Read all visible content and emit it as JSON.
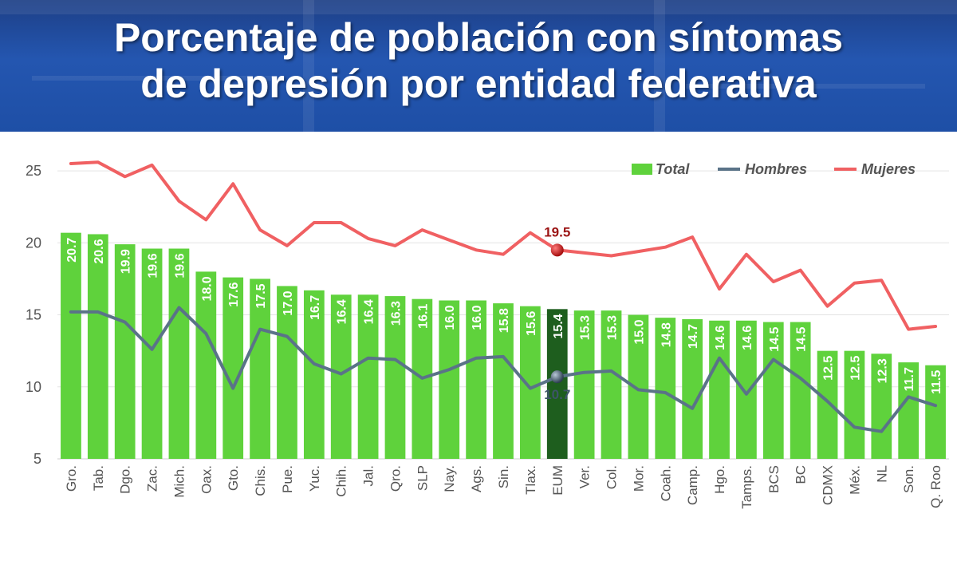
{
  "title_line1": "Porcentaje de población con síntomas",
  "title_line2": "de depresión por entidad federativa",
  "chart_data": {
    "type": "bar",
    "categories": [
      "Gro.",
      "Tab.",
      "Dgo.",
      "Zac.",
      "Mich.",
      "Oax.",
      "Gto.",
      "Chis.",
      "Pue.",
      "Yuc.",
      "Chih.",
      "Jal.",
      "Qro.",
      "SLP",
      "Nay.",
      "Ags.",
      "Sin.",
      "Tlax.",
      "EUM",
      "Ver.",
      "Col.",
      "Mor.",
      "Coah.",
      "Camp.",
      "Hgo.",
      "Tamps.",
      "BCS",
      "BC",
      "CDMX",
      "Méx.",
      "NL",
      "Son.",
      "Q. Roo"
    ],
    "series": [
      {
        "name": "Total",
        "type": "bar",
        "color": "#5fd23c",
        "highlight_color": "#1e5e1e",
        "values": [
          20.7,
          20.6,
          19.9,
          19.6,
          19.6,
          18.0,
          17.6,
          17.5,
          17.0,
          16.7,
          16.4,
          16.4,
          16.3,
          16.1,
          16.0,
          16.0,
          15.8,
          15.6,
          15.4,
          15.3,
          15.3,
          15.0,
          14.8,
          14.7,
          14.6,
          14.6,
          14.5,
          14.5,
          12.5,
          12.5,
          12.3,
          11.7,
          11.5
        ],
        "labels": [
          "20.7",
          "20.6",
          "19.9",
          "19.6",
          "19.6",
          "18.0",
          "17.6",
          "17.5",
          "17.0",
          "16.7",
          "16.4",
          "16.4",
          "16.3",
          "16.1",
          "16.0",
          "16.0",
          "15.8",
          "15.6",
          "15.4",
          "15.3",
          "15.3",
          "15.0",
          "14.8",
          "14.7",
          "14.6",
          "14.6",
          "14.5",
          "14.5",
          "12.5",
          "12.5",
          "12.3",
          "11.7",
          "11.5"
        ]
      },
      {
        "name": "Hombres",
        "type": "line",
        "color": "#5a7388",
        "values": [
          15.2,
          15.2,
          14.5,
          12.6,
          15.5,
          13.7,
          9.9,
          14.0,
          13.5,
          11.6,
          10.9,
          12.0,
          11.9,
          10.6,
          11.2,
          12.0,
          12.1,
          9.9,
          10.7,
          11.0,
          11.1,
          9.8,
          9.6,
          8.5,
          12.0,
          9.5,
          11.9,
          10.6,
          9.0,
          7.2,
          6.9,
          9.3,
          8.7
        ]
      },
      {
        "name": "Mujeres",
        "type": "line",
        "color": "#f06062",
        "values": [
          25.5,
          25.6,
          24.6,
          25.4,
          22.9,
          21.6,
          24.1,
          20.9,
          19.8,
          21.4,
          21.4,
          20.3,
          19.8,
          20.9,
          20.2,
          19.5,
          19.2,
          20.7,
          19.5,
          19.3,
          19.1,
          19.4,
          19.7,
          20.4,
          16.8,
          19.2,
          17.3,
          18.1,
          15.6,
          17.2,
          17.4,
          14.0,
          14.2
        ]
      }
    ],
    "highlight_index": 18,
    "annotations": [
      {
        "series": "Mujeres",
        "index": 18,
        "text": "19.5",
        "color": "#9b1414"
      },
      {
        "series": "Hombres",
        "index": 18,
        "text": "10.7",
        "color": "#3d5468"
      }
    ],
    "yticks": [
      "5",
      "10",
      "15",
      "20",
      "25"
    ],
    "ylim": [
      5,
      26.5
    ],
    "grid": true,
    "legend_position": "top-right"
  }
}
